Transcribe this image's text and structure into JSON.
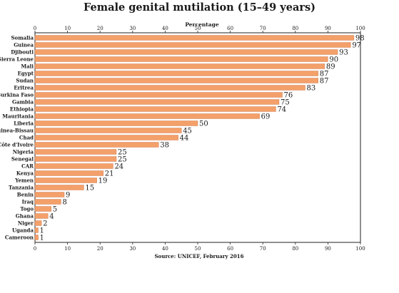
{
  "chart_data": {
    "type": "bar",
    "orientation": "horizontal",
    "title": "Female genital mutilation (15–49 years)",
    "xlabel": "Percentage",
    "source": "Source: UNICEF, February 2016",
    "xlim": [
      0,
      100
    ],
    "xticks": [
      0,
      10,
      20,
      30,
      40,
      50,
      60,
      70,
      80,
      90,
      100
    ],
    "grid": false,
    "bar_color": "#f4a06a",
    "bar_edge_color": "#c87446",
    "categories": [
      "Somalia",
      "Guinea",
      "Djibouti",
      "Sierra Leone",
      "Mali",
      "Egypt",
      "Sudan",
      "Eritrea",
      "Burkina Faso",
      "Gambia",
      "Ethiopia",
      "Mauritania",
      "Liberia",
      "Guinea-Bissau",
      "Chad",
      "Côte d'Ivoire",
      "Nigeria",
      "Senegal",
      "CAR",
      "Kenya",
      "Yemen",
      "Tanzania",
      "Benin",
      "Iraq",
      "Togo",
      "Ghana",
      "Niger",
      "Uganda",
      "Cameroon"
    ],
    "values": [
      98,
      97,
      93,
      90,
      89,
      87,
      87,
      83,
      76,
      75,
      74,
      69,
      50,
      45,
      44,
      38,
      25,
      25,
      24,
      21,
      19,
      15,
      9,
      8,
      5,
      4,
      2,
      1,
      1
    ]
  }
}
